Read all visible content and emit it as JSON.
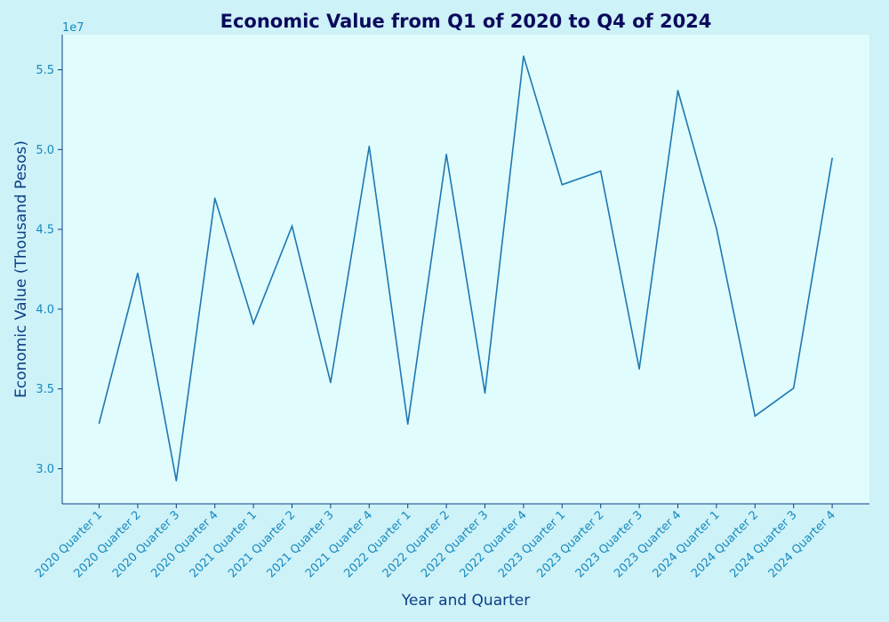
{
  "chart_data": {
    "type": "line",
    "title": "Economic Value from Q1 of 2020 to Q4 of 2024",
    "xlabel": "Year and Quarter",
    "ylabel": "Economic Value (Thousand Pesos)",
    "y_offset_label": "1e7",
    "y_tick_scale": 10000000,
    "ylim": [
      27800000,
      57200000
    ],
    "y_ticks": [
      30000000,
      35000000,
      40000000,
      45000000,
      50000000,
      55000000
    ],
    "y_tick_labels": [
      "3.0",
      "3.5",
      "4.0",
      "4.5",
      "5.0",
      "5.5"
    ],
    "grid": false,
    "categories": [
      "2020 Quarter 1",
      "2020 Quarter 2",
      "2020 Quarter 3",
      "2020 Quarter 4",
      "2021 Quarter 1",
      "2021 Quarter 2",
      "2021 Quarter 3",
      "2021 Quarter 4",
      "2022 Quarter 1",
      "2022 Quarter 2",
      "2022 Quarter 3",
      "2022 Quarter 4",
      "2023 Quarter 1",
      "2023 Quarter 2",
      "2023 Quarter 3",
      "2023 Quarter 4",
      "2024 Quarter 1",
      "2024 Quarter 2",
      "2024 Quarter 3",
      "2024 Quarter 4"
    ],
    "series": [
      {
        "values": [
          32850000,
          42250000,
          29250000,
          46950000,
          39100000,
          45200000,
          35400000,
          50200000,
          32800000,
          49700000,
          34750000,
          55850000,
          47800000,
          48650000,
          36250000,
          53700000,
          45050000,
          33300000,
          35050000,
          49450000
        ]
      }
    ],
    "colors": {
      "page_background": "#cdf2f8",
      "plot_background": "#e0fcfc",
      "line": "#1f77b4",
      "axis": "#0c3f86",
      "tick_text": "#1789c0",
      "title": "#0b0a5c"
    }
  }
}
